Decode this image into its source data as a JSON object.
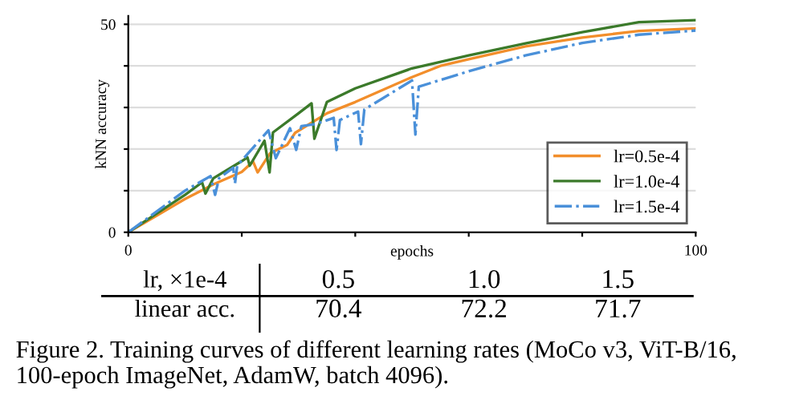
{
  "chart_data": {
    "type": "line",
    "xlabel": "epochs",
    "ylabel": "kNN accuracy",
    "xlim": [
      0,
      100
    ],
    "ylim": [
      0,
      52
    ],
    "xticks": [
      0,
      {
        "value": 20,
        "label": null
      },
      {
        "value": 40,
        "label": null
      },
      {
        "value": 60,
        "label": null
      },
      {
        "value": 80,
        "label": null
      },
      100
    ],
    "yticks": [
      0,
      {
        "value": 10,
        "label": null
      },
      {
        "value": 20,
        "label": null
      },
      {
        "value": 30,
        "label": null
      },
      {
        "value": 40,
        "label": null
      },
      50
    ],
    "grid": "y",
    "legend": "bottom right",
    "marker": "none",
    "series": [
      {
        "name": "lr=0.5e-4",
        "color": "#f28e2b",
        "line_style": "solid",
        "x": [
          0,
          5,
          10,
          15,
          20,
          22,
          22.8,
          25,
          28,
          29.4,
          35,
          40,
          50,
          55,
          60,
          70,
          80,
          90,
          100
        ],
        "values": [
          0,
          4,
          8,
          11.5,
          14.5,
          17,
          14.4,
          19,
          21,
          23.9,
          28.6,
          31.3,
          37.3,
          40,
          41.6,
          44.7,
          46.8,
          48.4,
          49
        ]
      },
      {
        "name": "lr=1.0e-4",
        "color": "#3b7a2a",
        "line_style": "solid",
        "x": [
          0,
          10,
          13,
          13.6,
          15,
          20,
          21,
          21.4,
          24,
          24.9,
          25.5,
          30,
          32.3,
          32.8,
          35,
          40,
          50,
          60,
          70,
          80,
          90,
          100
        ],
        "values": [
          0,
          9,
          12,
          9.3,
          13,
          17.1,
          18,
          16,
          22,
          14.4,
          24,
          28.6,
          31,
          22.5,
          31.3,
          34.6,
          39.4,
          42.5,
          45.4,
          48.1,
          50.5,
          51
        ]
      },
      {
        "name": "lr=1.5e-4",
        "color": "#4a90d9",
        "line_style": "dashdot",
        "x": [
          0,
          10,
          14.5,
          15.3,
          16,
          18.5,
          18.8,
          19.2,
          24.7,
          26,
          28.5,
          29.6,
          30.5,
          33,
          36.2,
          36.7,
          37.3,
          40.5,
          41,
          41.6,
          50,
          50.6,
          51.2,
          60,
          70,
          80,
          90,
          100
        ],
        "values": [
          0,
          10,
          13.5,
          9,
          13,
          15.5,
          11.7,
          16,
          24.5,
          17.8,
          25,
          19.8,
          25.5,
          26,
          27.5,
          19.8,
          27,
          29,
          21.2,
          29.5,
          36.5,
          23.5,
          35,
          38.7,
          42.5,
          45.5,
          47.5,
          48.5
        ]
      }
    ],
    "annotations": [
      "lr, ×1e-4",
      "0.5",
      "1.0",
      "1.5",
      "linear acc.",
      "70.4",
      "72.2",
      "71.7",
      "Figure 2. Training curves of different learning rates (MoCo v3, ViT-B/16, 100-epoch ImageNet, AdamW, batch 4096)."
    ]
  }
}
